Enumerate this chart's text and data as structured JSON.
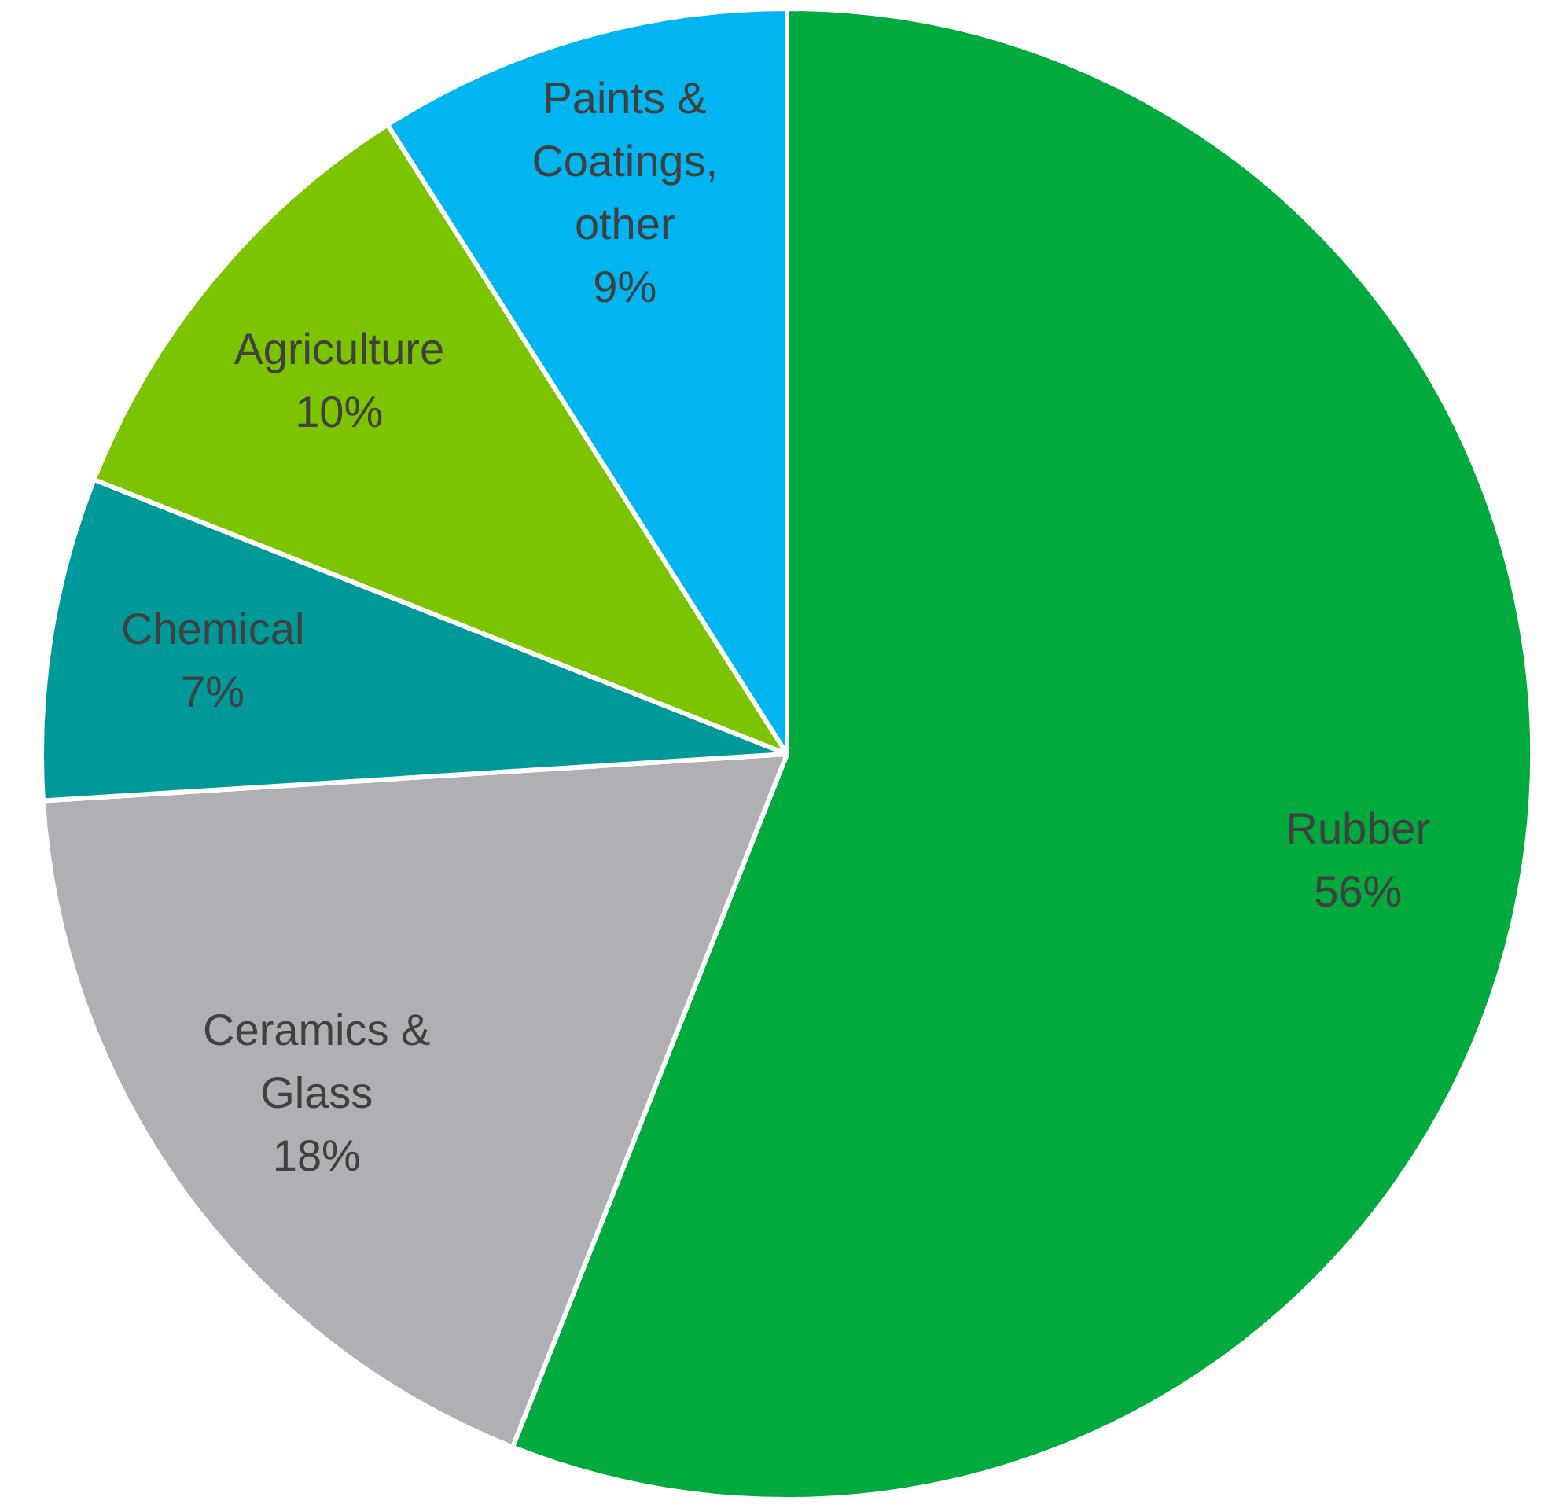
{
  "chart_data": {
    "type": "pie",
    "categories": [
      "Rubber",
      "Ceramics & Glass",
      "Chemical",
      "Agriculture",
      "Paints & Coatings, other"
    ],
    "values": [
      56,
      18,
      7,
      10,
      9
    ],
    "colors": [
      "#00aa3c",
      "#b0afb4",
      "#009999",
      "#7dc400",
      "#00b5f0"
    ],
    "value_labels": [
      "56%",
      "18%",
      "7%",
      "10%",
      "9%"
    ],
    "legend": false
  }
}
